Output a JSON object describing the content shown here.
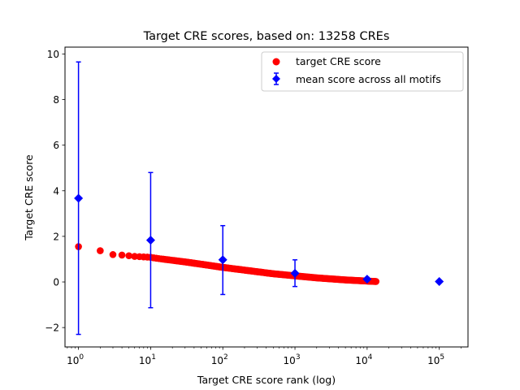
{
  "chart_data": {
    "type": "scatter",
    "title": "Target CRE scores, based on: 13258 CREs",
    "xlabel": "Target CRE score rank (log)",
    "ylabel": "Target CRE score",
    "xscale": "log",
    "xlim": [
      0.65,
      250000
    ],
    "ylim": [
      -2.85,
      10.3
    ],
    "x_ticks": [
      {
        "value": 1,
        "base": "10",
        "exp": "0"
      },
      {
        "value": 10,
        "base": "10",
        "exp": "1"
      },
      {
        "value": 100,
        "base": "10",
        "exp": "2"
      },
      {
        "value": 1000,
        "base": "10",
        "exp": "3"
      },
      {
        "value": 10000,
        "base": "10",
        "exp": "4"
      },
      {
        "value": 100000,
        "base": "10",
        "exp": "5"
      }
    ],
    "y_ticks": [
      "−2",
      "0",
      "2",
      "4",
      "6",
      "8",
      "10"
    ],
    "y_tick_values": [
      -2,
      0,
      2,
      4,
      6,
      8,
      10
    ],
    "legend": {
      "placement": "top-right",
      "entries": [
        "target CRE score",
        "mean score across all motifs"
      ]
    },
    "grid": false,
    "series": [
      {
        "name": "target CRE score",
        "color": "#ff0000",
        "marker": "circle",
        "x": [
          1,
          2,
          3,
          4,
          5,
          6,
          7,
          8,
          9,
          10,
          12,
          15,
          20,
          30,
          50,
          100,
          200,
          500,
          1000,
          2000,
          5000,
          10000,
          13258
        ],
        "y": [
          1.55,
          1.37,
          1.2,
          1.18,
          1.15,
          1.12,
          1.11,
          1.1,
          1.09,
          1.08,
          1.04,
          1.0,
          0.95,
          0.88,
          0.78,
          0.64,
          0.52,
          0.36,
          0.27,
          0.18,
          0.09,
          0.04,
          0.02
        ]
      },
      {
        "name": "mean score across all motifs",
        "color": "#0000ff",
        "marker": "diamond",
        "x": [
          1,
          10,
          100,
          1000,
          10000,
          100000
        ],
        "y": [
          3.67,
          1.83,
          0.97,
          0.38,
          0.12,
          0.02
        ],
        "err_low": [
          -2.3,
          -1.13,
          -0.55,
          -0.2,
          0.05,
          null
        ],
        "err_high": [
          9.65,
          4.8,
          2.47,
          0.97,
          0.2,
          null
        ]
      }
    ]
  }
}
